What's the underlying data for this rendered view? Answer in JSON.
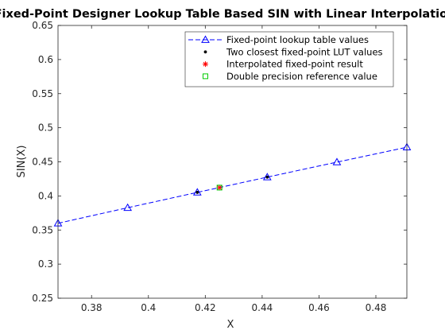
{
  "chart_data": {
    "type": "line",
    "title": "Fixed-Point Designer Lookup Table Based SIN with Linear Interpolation",
    "xlabel": "X",
    "ylabel": "SIN(X)",
    "xlim": [
      0.3682,
      0.4909
    ],
    "ylim": [
      0.25,
      0.65
    ],
    "x_ticks": [
      0.38,
      0.4,
      0.42,
      0.44,
      0.46,
      0.48
    ],
    "x_tick_labels": [
      "0.38",
      "0.4",
      "0.42",
      "0.44",
      "0.46",
      "0.48"
    ],
    "y_ticks": [
      0.25,
      0.3,
      0.35,
      0.4,
      0.45,
      0.5,
      0.55,
      0.6,
      0.65
    ],
    "y_tick_labels": [
      "0.25",
      "0.3",
      "0.35",
      "0.4",
      "0.45",
      "0.5",
      "0.55",
      "0.6",
      "0.65"
    ],
    "grid": false,
    "legend_position": "top-right",
    "series": [
      {
        "name": "Fixed-point lookup table values",
        "type": "line",
        "style": "dashed",
        "marker": "triangle",
        "color": "#0000ff",
        "x": [
          0.3682,
          0.3927,
          0.4172,
          0.4418,
          0.4663,
          0.4909
        ],
        "y": [
          0.3599,
          0.3827,
          0.4052,
          0.4276,
          0.4496,
          0.4714
        ]
      },
      {
        "name": "Two closest fixed-point LUT values",
        "type": "scatter",
        "marker": "dot",
        "color": "#000000",
        "x": [
          0.4172,
          0.4418
        ],
        "y": [
          0.4052,
          0.4276
        ]
      },
      {
        "name": "Interpolated fixed-point result",
        "type": "scatter",
        "marker": "asterisk",
        "color": "#ff0000",
        "x": [
          0.425
        ],
        "y": [
          0.4122
        ]
      },
      {
        "name": "Double precision reference value",
        "type": "scatter",
        "marker": "square",
        "color": "#00cc00",
        "x": [
          0.425
        ],
        "y": [
          0.4122
        ]
      }
    ]
  }
}
